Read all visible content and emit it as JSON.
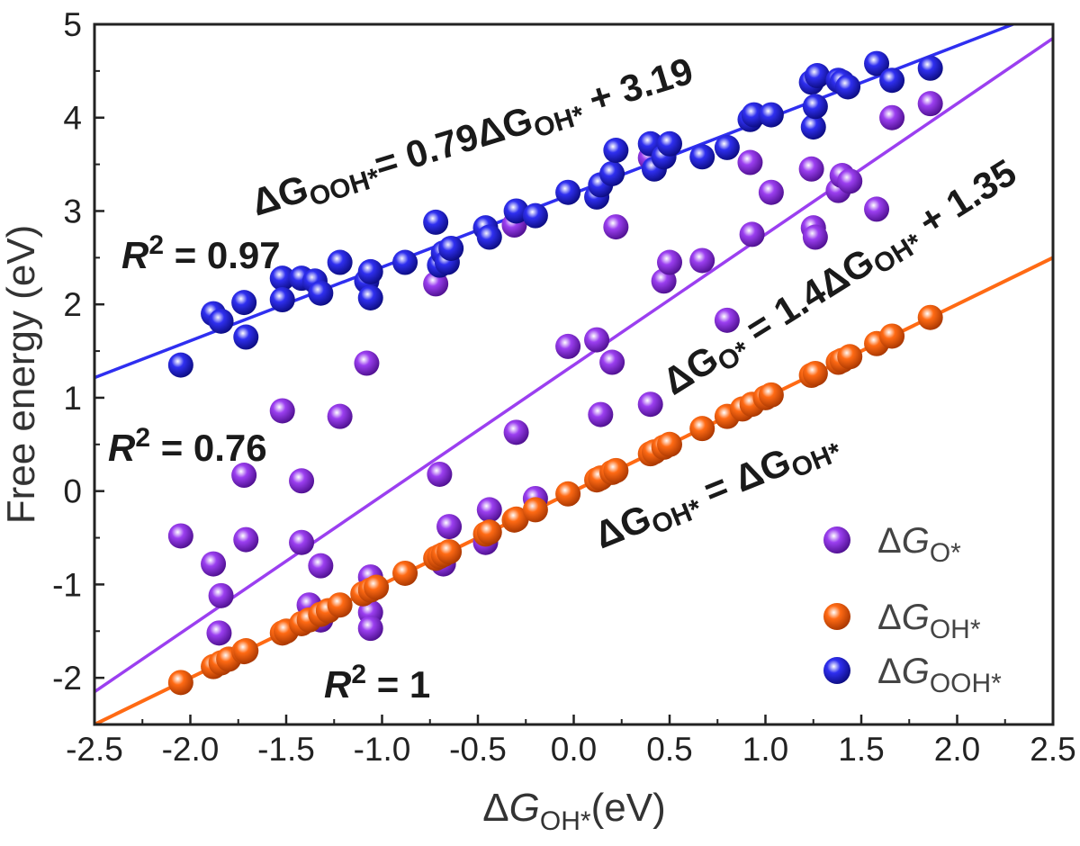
{
  "chart_data": {
    "type": "scatter",
    "xlim": [
      -2.5,
      2.5
    ],
    "ylim": [
      -2.5,
      5
    ],
    "x_ticks": [
      -2.5,
      -2.0,
      -1.5,
      -1.0,
      -0.5,
      0.0,
      0.5,
      1.0,
      1.5,
      2.0,
      2.5
    ],
    "x_tick_labels": [
      "-2.5",
      "-2.0",
      "-1.5",
      "-1.0",
      "-0.5",
      "0.0",
      "0.5",
      "1.0",
      "1.5",
      "2.0",
      "2.5"
    ],
    "y_ticks": [
      -2,
      -1,
      0,
      1,
      2,
      3,
      4,
      5
    ],
    "y_tick_labels": [
      "-2",
      "-1",
      "0",
      "1",
      "2",
      "3",
      "4",
      "5"
    ],
    "xlabel": {
      "delta": "Δ",
      "var": "G",
      "sub": "OH*",
      "rest": "(eV)"
    },
    "ylabel": "Free energy (eV)",
    "grid": false,
    "legend_position": "bottom-right",
    "series": [
      {
        "name": {
          "delta": "Δ",
          "var": "G",
          "sub": "O*"
        },
        "color": "#9b3ff0",
        "fit": {
          "slope": 1.4,
          "intercept": 1.35
        },
        "points": [
          [
            -2.05,
            -0.48
          ],
          [
            -1.88,
            -0.78
          ],
          [
            -1.84,
            -1.12
          ],
          [
            -1.85,
            -1.52
          ],
          [
            -1.72,
            0.17
          ],
          [
            -1.71,
            -0.52
          ],
          [
            -1.52,
            0.86
          ],
          [
            -1.42,
            0.11
          ],
          [
            -1.42,
            -0.55
          ],
          [
            -1.38,
            -1.22
          ],
          [
            -1.32,
            -0.8
          ],
          [
            -1.32,
            -1.38
          ],
          [
            -1.22,
            0.8
          ],
          [
            -1.08,
            1.37
          ],
          [
            -1.06,
            -0.92
          ],
          [
            -1.06,
            -1.3
          ],
          [
            -1.06,
            -1.47
          ],
          [
            -0.72,
            2.22
          ],
          [
            -0.7,
            0.18
          ],
          [
            -0.68,
            -0.78
          ],
          [
            -0.65,
            -0.38
          ],
          [
            -0.46,
            -0.55
          ],
          [
            -0.44,
            -0.2
          ],
          [
            -0.31,
            2.85
          ],
          [
            -0.3,
            0.63
          ],
          [
            -0.2,
            -0.08
          ],
          [
            -0.03,
            1.55
          ],
          [
            0.12,
            1.62
          ],
          [
            0.14,
            0.82
          ],
          [
            0.2,
            1.38
          ],
          [
            0.22,
            2.83
          ],
          [
            0.4,
            0.93
          ],
          [
            0.4,
            3.57
          ],
          [
            0.47,
            2.25
          ],
          [
            0.5,
            2.45
          ],
          [
            0.67,
            2.47
          ],
          [
            0.8,
            1.83
          ],
          [
            0.92,
            3.52
          ],
          [
            0.93,
            2.75
          ],
          [
            1.03,
            3.2
          ],
          [
            1.24,
            3.45
          ],
          [
            1.25,
            2.82
          ],
          [
            1.26,
            2.72
          ],
          [
            1.38,
            3.22
          ],
          [
            1.4,
            3.38
          ],
          [
            1.44,
            3.32
          ],
          [
            1.58,
            3.02
          ],
          [
            1.66,
            4.0
          ],
          [
            1.86,
            4.15
          ]
        ]
      },
      {
        "name": {
          "delta": "Δ",
          "var": "G",
          "sub": "OH*"
        },
        "color": "#ff6a14",
        "fit": {
          "slope": 1.0,
          "intercept": 0.0
        },
        "points": [
          [
            -2.05,
            -2.05
          ],
          [
            -1.88,
            -1.88
          ],
          [
            -1.84,
            -1.84
          ],
          [
            -1.8,
            -1.8
          ],
          [
            -1.72,
            -1.72
          ],
          [
            -1.71,
            -1.71
          ],
          [
            -1.52,
            -1.52
          ],
          [
            -1.5,
            -1.5
          ],
          [
            -1.42,
            -1.42
          ],
          [
            -1.38,
            -1.38
          ],
          [
            -1.32,
            -1.32
          ],
          [
            -1.28,
            -1.28
          ],
          [
            -1.22,
            -1.22
          ],
          [
            -1.1,
            -1.1
          ],
          [
            -1.06,
            -1.06
          ],
          [
            -1.03,
            -1.03
          ],
          [
            -0.88,
            -0.88
          ],
          [
            -0.72,
            -0.72
          ],
          [
            -0.7,
            -0.7
          ],
          [
            -0.68,
            -0.68
          ],
          [
            -0.65,
            -0.65
          ],
          [
            -0.46,
            -0.46
          ],
          [
            -0.44,
            -0.44
          ],
          [
            -0.31,
            -0.31
          ],
          [
            -0.3,
            -0.3
          ],
          [
            -0.2,
            -0.2
          ],
          [
            -0.03,
            -0.03
          ],
          [
            0.12,
            0.12
          ],
          [
            0.14,
            0.14
          ],
          [
            0.2,
            0.2
          ],
          [
            0.22,
            0.22
          ],
          [
            0.4,
            0.4
          ],
          [
            0.42,
            0.42
          ],
          [
            0.47,
            0.47
          ],
          [
            0.5,
            0.5
          ],
          [
            0.67,
            0.67
          ],
          [
            0.8,
            0.8
          ],
          [
            0.88,
            0.88
          ],
          [
            0.93,
            0.93
          ],
          [
            1.0,
            1.0
          ],
          [
            1.03,
            1.03
          ],
          [
            1.24,
            1.24
          ],
          [
            1.26,
            1.26
          ],
          [
            1.38,
            1.38
          ],
          [
            1.4,
            1.4
          ],
          [
            1.44,
            1.44
          ],
          [
            1.58,
            1.58
          ],
          [
            1.66,
            1.66
          ],
          [
            1.86,
            1.86
          ]
        ]
      },
      {
        "name": {
          "delta": "Δ",
          "var": "G",
          "sub": "OOH*"
        },
        "color": "#2f2ff0",
        "fit": {
          "slope": 0.79,
          "intercept": 3.19
        },
        "points": [
          [
            -2.05,
            1.35
          ],
          [
            -1.88,
            1.9
          ],
          [
            -1.84,
            1.82
          ],
          [
            -1.72,
            2.02
          ],
          [
            -1.71,
            1.65
          ],
          [
            -1.52,
            2.28
          ],
          [
            -1.52,
            2.05
          ],
          [
            -1.42,
            2.28
          ],
          [
            -1.35,
            2.25
          ],
          [
            -1.32,
            2.12
          ],
          [
            -1.22,
            2.45
          ],
          [
            -1.08,
            2.25
          ],
          [
            -1.06,
            2.07
          ],
          [
            -1.06,
            2.35
          ],
          [
            -0.88,
            2.45
          ],
          [
            -0.72,
            2.88
          ],
          [
            -0.7,
            2.42
          ],
          [
            -0.68,
            2.55
          ],
          [
            -0.66,
            2.45
          ],
          [
            -0.64,
            2.6
          ],
          [
            -0.46,
            2.82
          ],
          [
            -0.44,
            2.72
          ],
          [
            -0.3,
            3.0
          ],
          [
            -0.2,
            2.95
          ],
          [
            -0.03,
            3.2
          ],
          [
            0.12,
            3.15
          ],
          [
            0.14,
            3.28
          ],
          [
            0.2,
            3.4
          ],
          [
            0.22,
            3.65
          ],
          [
            0.4,
            3.72
          ],
          [
            0.42,
            3.45
          ],
          [
            0.47,
            3.58
          ],
          [
            0.5,
            3.72
          ],
          [
            0.67,
            3.58
          ],
          [
            0.8,
            3.68
          ],
          [
            0.92,
            3.98
          ],
          [
            0.94,
            4.03
          ],
          [
            1.03,
            4.03
          ],
          [
            1.24,
            4.38
          ],
          [
            1.25,
            3.9
          ],
          [
            1.26,
            4.12
          ],
          [
            1.27,
            4.45
          ],
          [
            1.38,
            4.4
          ],
          [
            1.4,
            4.38
          ],
          [
            1.43,
            4.33
          ],
          [
            1.58,
            4.58
          ],
          [
            1.66,
            4.4
          ],
          [
            1.86,
            4.53
          ]
        ]
      }
    ],
    "annotations": [
      {
        "id": "eq-ooh",
        "lhs_sub": "OOH*",
        "rhs_mid": "= 0.79Δ",
        "rhs_sub": "OH*",
        "rhs_tail": " + 3.19"
      },
      {
        "id": "eq-o",
        "lhs_sub": "O*",
        "rhs_mid": " = 1.4Δ",
        "rhs_sub": "OH*",
        "rhs_tail": " + 1.35"
      },
      {
        "id": "eq-oh",
        "lhs_sub": "OH*",
        "rhs_mid": " = Δ",
        "rhs_sub": "OH*",
        "rhs_tail": ""
      },
      {
        "id": "r2-ooh",
        "r": "R",
        "sup": "2",
        "text": " = 0.97"
      },
      {
        "id": "r2-o",
        "r": "R",
        "sup": "2",
        "text": " = 0.76"
      },
      {
        "id": "r2-oh",
        "r": "R",
        "sup": "2",
        "text": " = 1"
      }
    ],
    "delta": "Δ",
    "var": "G"
  }
}
